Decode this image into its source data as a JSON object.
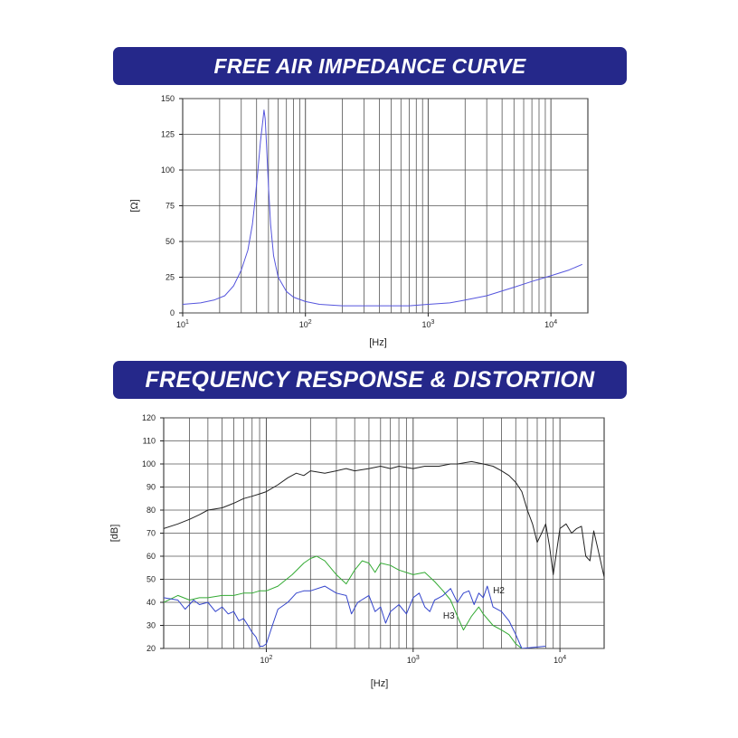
{
  "charts_titles": {
    "impedance": "FREE AIR IMPEDANCE CURVE",
    "response": "FREQUENCY RESPONSE & DISTORTION"
  },
  "chart_data": [
    {
      "type": "line",
      "title": "FREE AIR IMPEDANCE CURVE",
      "xlabel": "[Hz]",
      "ylabel": "[Ω]",
      "x_scale": "log",
      "xlim": [
        10,
        20000
      ],
      "ylim": [
        0,
        150
      ],
      "x_ticks": [
        {
          "value": 10,
          "base": "10",
          "exp": "1"
        },
        {
          "value": 100,
          "base": "10",
          "exp": "2"
        },
        {
          "value": 1000,
          "base": "10",
          "exp": "3"
        },
        {
          "value": 10000,
          "base": "10",
          "exp": "4"
        }
      ],
      "y_ticks": [
        "0",
        "25",
        "50",
        "75",
        "100",
        "125",
        "150"
      ],
      "grid": true,
      "series": [
        {
          "color": "#5555dd",
          "x": [
            10,
            14,
            18,
            22,
            26,
            30,
            34,
            37,
            39,
            41,
            43,
            45,
            46,
            47,
            48,
            50,
            52,
            55,
            60,
            70,
            80,
            100,
            130,
            200,
            400,
            700,
            1000,
            1500,
            2000,
            3000,
            5000,
            7000,
            10000,
            14000,
            18000
          ],
          "y": [
            6,
            7,
            9,
            12,
            19,
            30,
            44,
            62,
            80,
            100,
            120,
            135,
            142,
            136,
            120,
            88,
            62,
            40,
            25,
            15,
            11,
            8,
            6,
            5,
            5,
            5,
            6,
            7,
            9,
            12,
            18,
            22,
            26,
            30,
            34
          ]
        }
      ]
    },
    {
      "type": "line",
      "title": "FREQUENCY RESPONSE & DISTORTION",
      "xlabel": "[Hz]",
      "ylabel": "[dB]",
      "x_scale": "log",
      "xlim": [
        20,
        20000
      ],
      "ylim": [
        20,
        120
      ],
      "x_ticks": [
        {
          "value": 100,
          "base": "10",
          "exp": "2"
        },
        {
          "value": 1000,
          "base": "10",
          "exp": "3"
        },
        {
          "value": 10000,
          "base": "10",
          "exp": "4"
        }
      ],
      "y_ticks": [
        "20",
        "30",
        "40",
        "50",
        "60",
        "70",
        "80",
        "90",
        "100",
        "110",
        "120"
      ],
      "grid": true,
      "annotations": [
        {
          "text": "H2",
          "x": 3500,
          "y": 44
        },
        {
          "text": "H3",
          "x": 1600,
          "y": 33
        }
      ],
      "series": [
        {
          "color": "#222222",
          "x": [
            20,
            25,
            30,
            35,
            40,
            50,
            60,
            70,
            80,
            90,
            100,
            120,
            140,
            160,
            180,
            200,
            250,
            300,
            350,
            400,
            500,
            600,
            700,
            800,
            1000,
            1200,
            1500,
            1800,
            2000,
            2500,
            3000,
            3500,
            4000,
            4500,
            5000,
            5500,
            6000,
            6500,
            7000,
            7500,
            8000,
            8500,
            9000,
            10000,
            11000,
            12000,
            13000,
            14000,
            15000,
            16000,
            17000,
            18000,
            20000
          ],
          "y": [
            72,
            74,
            76,
            78,
            80,
            81,
            83,
            85,
            86,
            87,
            88,
            91,
            94,
            96,
            95,
            97,
            96,
            97,
            98,
            97,
            98,
            99,
            98,
            99,
            98,
            99,
            99,
            100,
            100,
            101,
            100,
            99,
            97,
            95,
            92,
            88,
            80,
            74,
            66,
            70,
            74,
            64,
            52,
            72,
            74,
            70,
            72,
            73,
            60,
            58,
            71,
            64,
            51
          ]
        },
        {
          "color": "#33aa33",
          "x": [
            20,
            25,
            30,
            35,
            40,
            50,
            60,
            70,
            80,
            90,
            100,
            120,
            150,
            180,
            200,
            220,
            250,
            300,
            350,
            400,
            450,
            500,
            550,
            600,
            700,
            800,
            1000,
            1200,
            1400,
            1600,
            1800,
            2000,
            2200,
            2500,
            2800,
            3000,
            3500,
            4000,
            4500,
            5000,
            5500
          ],
          "y": [
            40,
            43,
            41,
            42,
            42,
            43,
            43,
            44,
            44,
            45,
            45,
            47,
            52,
            57,
            59,
            60,
            58,
            52,
            48,
            54,
            58,
            57,
            53,
            57,
            56,
            54,
            52,
            53,
            49,
            45,
            41,
            34,
            28,
            34,
            38,
            35,
            30,
            28,
            26,
            22,
            20
          ]
        },
        {
          "color": "#3344cc",
          "x": [
            20,
            25,
            28,
            32,
            35,
            40,
            45,
            50,
            55,
            60,
            65,
            70,
            75,
            80,
            85,
            90,
            95,
            100,
            110,
            120,
            140,
            160,
            180,
            200,
            250,
            300,
            350,
            380,
            420,
            500,
            550,
            600,
            650,
            700,
            800,
            900,
            1000,
            1100,
            1200,
            1300,
            1400,
            1500,
            1600,
            1800,
            2000,
            2200,
            2400,
            2600,
            2800,
            3000,
            3200,
            3500,
            4000,
            4500,
            5000,
            5500,
            8000
          ],
          "y": [
            42,
            41,
            37,
            41,
            39,
            40,
            36,
            38,
            35,
            36,
            32,
            33,
            30,
            27,
            25,
            21,
            21,
            22,
            30,
            37,
            40,
            44,
            45,
            45,
            47,
            44,
            43,
            35,
            40,
            43,
            36,
            38,
            31,
            36,
            39,
            35,
            42,
            44,
            38,
            36,
            41,
            42,
            43,
            46,
            40,
            44,
            45,
            39,
            44,
            42,
            47,
            38,
            36,
            32,
            26,
            20,
            21
          ]
        }
      ]
    }
  ]
}
